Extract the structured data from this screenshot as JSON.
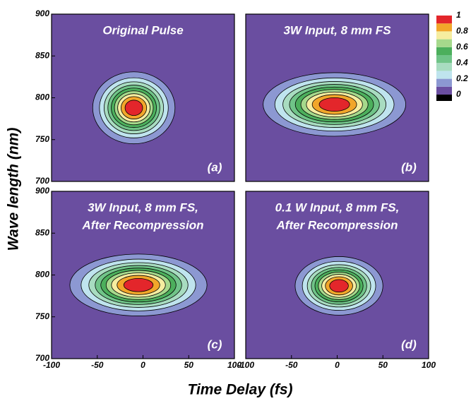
{
  "chart_data": {
    "type": "contour",
    "xlabel": "Time Delay (fs)",
    "ylabel": "Wave length (nm)",
    "xlim": [
      -100,
      100
    ],
    "xticks": [
      -100,
      -50,
      0,
      50,
      100
    ],
    "ylim": [
      700,
      900
    ],
    "yticks": [
      700,
      750,
      800,
      850,
      900
    ],
    "levels": [
      0.1,
      0.2,
      0.3,
      0.4,
      0.5,
      0.6,
      0.7,
      0.8,
      0.9
    ],
    "colors": [
      "#6a4ea0",
      "#8c98d2",
      "#bfe4ee",
      "#a8dcc0",
      "#70c488",
      "#4caf5c",
      "#a6d98c",
      "#f6eda0",
      "#f2a62a",
      "#e3262b"
    ],
    "colorbar": {
      "lim": [
        0,
        1
      ],
      "ticks": [
        0,
        0.2,
        0.4,
        0.6,
        0.8,
        1
      ]
    },
    "panels": [
      {
        "title_lines": [
          "Original Pulse"
        ],
        "label": "(a)",
        "peak_x": -10,
        "peak_y": 788,
        "width_x": 45,
        "width_y": 43
      },
      {
        "title_lines": [
          "3W Input, 8 mm FS"
        ],
        "label": "(b)",
        "peak_x": -3,
        "peak_y": 792,
        "width_x": 78,
        "width_y": 38
      },
      {
        "title_lines": [
          "3W Input, 8 mm FS,",
          "After Recompression"
        ],
        "label": "(c)",
        "peak_x": -5,
        "peak_y": 788,
        "width_x": 75,
        "width_y": 37
      },
      {
        "title_lines": [
          "0.1 W Input, 8 mm FS,",
          "After Recompression"
        ],
        "label": "(d)",
        "peak_x": 2,
        "peak_y": 787,
        "width_x": 48,
        "width_y": 35
      }
    ]
  }
}
